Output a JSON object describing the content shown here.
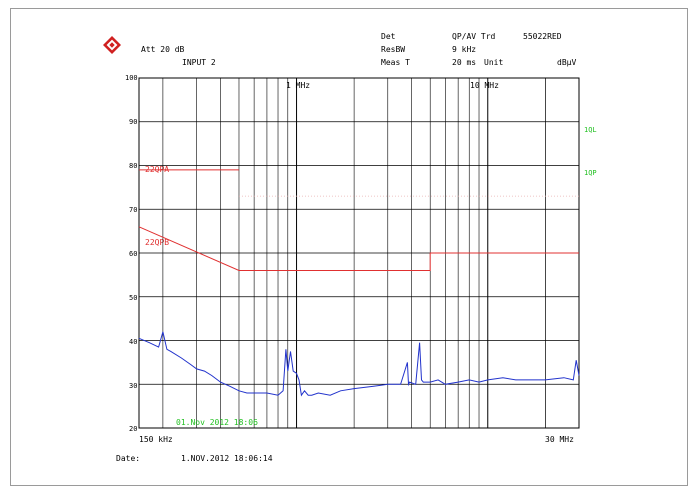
{
  "header": {
    "att": "Att 20 dB",
    "input": "INPUT 2",
    "det_label": "Det",
    "det_value": "QP/AV Trd",
    "resbw_label": "ResBW",
    "resbw_value": "9 kHz",
    "meas_label": "Meas T",
    "meas_value": "20 ms",
    "unit_label": "Unit",
    "unit_value": "dBµV",
    "trace_id": "55022RED",
    "marker_1mhz": "1 MHz",
    "marker_10mhz": "10 MHz"
  },
  "limits": {
    "qp_label": "22QPA",
    "av_label": "22QPB",
    "right_label_1": "1QL",
    "right_label_2": "1QP",
    "qp_color": "#e03030",
    "trace_color": "#2233cc",
    "green": "#22c022"
  },
  "stamp": "01.Nov 2012  18:06",
  "footer": {
    "x_start": "150 kHz",
    "x_end": "30 MHz",
    "date_label": "Date:",
    "date_value": "1.NOV.2012  18:06:14"
  },
  "chart_data": {
    "type": "line",
    "xscale": "log",
    "xlim": [
      0.15,
      30
    ],
    "ylim": [
      20,
      100
    ],
    "yticks": [
      20,
      30,
      40,
      50,
      60,
      70,
      80,
      90,
      100
    ],
    "series": [
      {
        "name": "22QPA",
        "color": "#e03030",
        "x": [
          0.15,
          0.5,
          0.5,
          30
        ],
        "y": [
          79,
          79,
          73,
          73
        ],
        "dotted_after_step": true
      },
      {
        "name": "22QPB",
        "color": "#e03030",
        "x": [
          0.15,
          0.5,
          5,
          5,
          30
        ],
        "y": [
          66,
          56,
          56,
          60,
          60
        ]
      },
      {
        "color": "#2233cc",
        "x": [
          0.15,
          0.17,
          0.19,
          0.2,
          0.21,
          0.22,
          0.25,
          0.28,
          0.3,
          0.33,
          0.36,
          0.4,
          0.45,
          0.5,
          0.55,
          0.6,
          0.7,
          0.8,
          0.85,
          0.88,
          0.9,
          0.93,
          0.96,
          1.0,
          1.03,
          1.06,
          1.1,
          1.15,
          1.2,
          1.3,
          1.5,
          1.7,
          2.0,
          2.5,
          3.0,
          3.5,
          3.8,
          3.85,
          3.9,
          4.2,
          4.4,
          4.5,
          4.6,
          5.0,
          5.5,
          6.0,
          7.0,
          8.0,
          9.0,
          10.0,
          12.0,
          14.0,
          16.0,
          20.0,
          25.0,
          28.0,
          29.0,
          30.0
        ],
        "y": [
          40.5,
          39.5,
          38.5,
          42,
          38,
          37.5,
          36,
          34.5,
          33.5,
          33,
          32,
          30.5,
          29.5,
          28.5,
          28,
          28,
          28,
          27.5,
          28.5,
          38,
          33,
          37.5,
          33,
          32.5,
          31,
          27.5,
          28.5,
          27.5,
          27.5,
          28,
          27.5,
          28.5,
          29,
          29.5,
          30,
          30,
          35,
          30,
          30.5,
          30,
          39.5,
          31,
          30.5,
          30.5,
          31,
          30,
          30.5,
          31,
          30.5,
          31,
          31.5,
          31,
          31,
          31,
          31.5,
          31,
          35.5,
          32
        ]
      }
    ]
  }
}
